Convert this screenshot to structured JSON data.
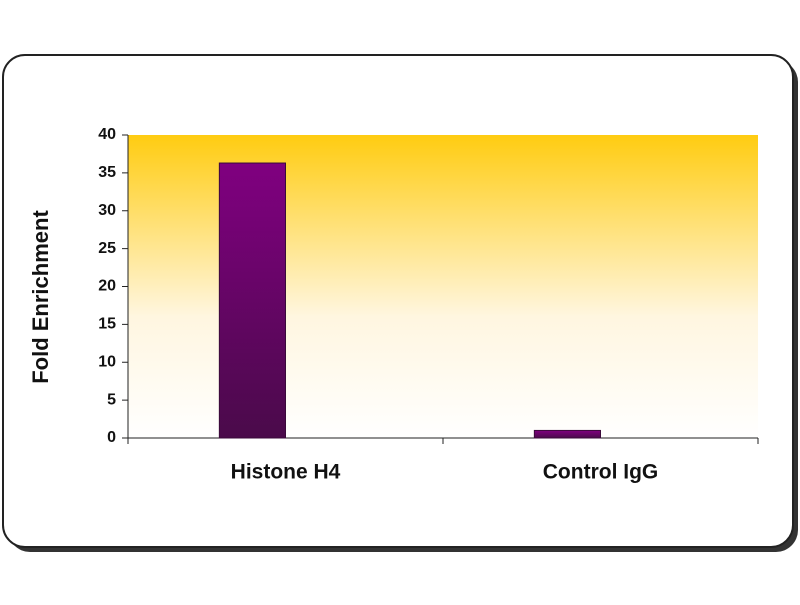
{
  "chart_data": {
    "type": "bar",
    "y_label": "Fold Enrichment",
    "categories": [
      "Histone H4",
      "Control IgG"
    ],
    "values": [
      36.3,
      1
    ],
    "color": "#800080",
    "ylim": [
      0,
      40
    ],
    "yticks": [
      0,
      5,
      10,
      15,
      20,
      25,
      30,
      35,
      40
    ]
  }
}
